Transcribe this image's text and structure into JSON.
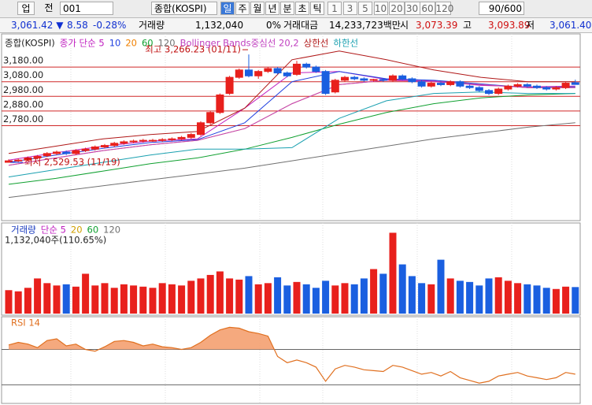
{
  "toolbar": {
    "mode": "업",
    "prefix": "전",
    "code": "001",
    "name": "종합(KOSPI)",
    "periods": [
      "일",
      "주",
      "월",
      "년",
      "분",
      "초",
      "틱"
    ],
    "intervals": [
      "1",
      "3",
      "5",
      "10",
      "20",
      "30",
      "60",
      "120"
    ],
    "count": "90/600"
  },
  "quote": [
    {
      "text": "3,061.42 ▼",
      "color": "#1030d0"
    },
    {
      "text": "8.58",
      "color": "#1030d0"
    },
    {
      "text": "-0.28%",
      "color": "#1030d0"
    },
    {
      "text": "거래량",
      "color": "#000000"
    },
    {
      "text": "1,132,040",
      "color": "#000000"
    },
    {
      "text": "0%",
      "color": "#000000"
    },
    {
      "text": "거래대금",
      "color": "#000000"
    },
    {
      "text": "14,233,723백만",
      "color": "#000000"
    },
    {
      "text": "시",
      "color": "#000000"
    },
    {
      "text": "3,073.39",
      "color": "#d01010"
    },
    {
      "text": "고",
      "color": "#000000"
    },
    {
      "text": "3,093.89",
      "color": "#d01010"
    },
    {
      "text": "저",
      "color": "#000000"
    },
    {
      "text": "3,061.40",
      "color": "#1030d0"
    }
  ],
  "chart_data": [
    {
      "type": "candlestick",
      "title": "종합(KOSPI)",
      "up_color": "#e8201c",
      "down_color": "#1a5fe0",
      "grid_color": "#d02828",
      "ylim": [
        2175,
        3385
      ],
      "yticks": [
        {
          "value": 3180,
          "label": "3,180.00"
        },
        {
          "value": 3080,
          "label": "3,080.00"
        },
        {
          "value": 2980,
          "label": "2,980.00"
        },
        {
          "value": 2880,
          "label": "2,880.00"
        },
        {
          "value": 2780,
          "label": "2,780.00"
        }
      ],
      "annotations": [
        {
          "text": "최고 3,266.23 (01/11)",
          "index": 25
        },
        {
          "text": "최저 2,529.53 (11/19)",
          "index": 0
        }
      ],
      "open": [
        2530,
        2540,
        2545,
        2560,
        2575,
        2590,
        2600,
        2590,
        2610,
        2620,
        2635,
        2645,
        2660,
        2670,
        2675,
        2680,
        2680,
        2685,
        2690,
        2700,
        2720,
        2800,
        2870,
        3000,
        3110,
        3160,
        3120,
        3150,
        3170,
        3140,
        3130,
        3200,
        3180,
        3150,
        3010,
        3090,
        3110,
        3100,
        3090,
        3095,
        3090,
        3120,
        3100,
        3080,
        3050,
        3070,
        3060,
        3080,
        3050,
        3040,
        3020,
        3000,
        3030,
        3050,
        3060,
        3050,
        3040,
        3030,
        3040,
        3073.39
      ],
      "high": [
        2550,
        2555,
        2570,
        2580,
        2600,
        2610,
        2610,
        2620,
        2630,
        2645,
        2655,
        2670,
        2680,
        2685,
        2690,
        2690,
        2695,
        2700,
        2710,
        2730,
        2810,
        2880,
        3000,
        3120,
        3170,
        3266.23,
        3160,
        3180,
        3180,
        3150,
        3222,
        3210,
        3190,
        3160,
        3100,
        3120,
        3120,
        3110,
        3100,
        3105,
        3130,
        3130,
        3110,
        3090,
        3080,
        3080,
        3090,
        3090,
        3060,
        3050,
        3030,
        3040,
        3060,
        3070,
        3070,
        3060,
        3050,
        3050,
        3080,
        3093.89
      ],
      "low": [
        2529.53,
        2530,
        2540,
        2550,
        2565,
        2580,
        2580,
        2580,
        2600,
        2610,
        2625,
        2635,
        2650,
        2660,
        2665,
        2670,
        2670,
        2675,
        2680,
        2690,
        2710,
        2790,
        2860,
        2990,
        3100,
        3110,
        3100,
        3140,
        3130,
        3110,
        3120,
        3170,
        3140,
        2990,
        3000,
        3080,
        3090,
        3080,
        3080,
        3080,
        3080,
        3090,
        3070,
        3040,
        3040,
        3050,
        3050,
        3040,
        3030,
        3010,
        2990,
        2990,
        3020,
        3040,
        3040,
        3030,
        3020,
        3020,
        3030,
        3061.4
      ],
      "close": [
        2540,
        2545,
        2560,
        2570,
        2590,
        2600,
        2590,
        2610,
        2620,
        2635,
        2645,
        2660,
        2670,
        2675,
        2680,
        2680,
        2685,
        2690,
        2700,
        2720,
        2800,
        2870,
        2990,
        3110,
        3160,
        3120,
        3150,
        3170,
        3140,
        3120,
        3200,
        3180,
        3150,
        3000,
        3090,
        3110,
        3100,
        3090,
        3095,
        3090,
        3120,
        3100,
        3080,
        3050,
        3070,
        3060,
        3080,
        3050,
        3040,
        3020,
        3000,
        3030,
        3050,
        3060,
        3050,
        3040,
        3030,
        3040,
        3070,
        3061.42
      ],
      "series": [
        {
          "name": "종가 단순 5",
          "color": "#c020c0",
          "values": [
            2545,
            2595,
            2640,
            2675,
            2690,
            2900,
            3140,
            3150,
            3095,
            3085,
            3055,
            3045,
            3050
          ]
        },
        {
          "name": "10",
          "color": "#2040e0",
          "values": [
            2530,
            2580,
            2625,
            2665,
            2685,
            2800,
            3080,
            3150,
            3100,
            3090,
            3065,
            3040,
            3045
          ]
        },
        {
          "name": "20",
          "color": "#f08000",
          "values": [
            2510,
            2560,
            2610,
            2650,
            2680,
            2760,
            2930,
            3060,
            3090,
            3080,
            3060,
            3040,
            3040
          ]
        },
        {
          "name": "60",
          "color": "#10a030",
          "values": [
            2380,
            2420,
            2470,
            2520,
            2560,
            2620,
            2700,
            2790,
            2870,
            2930,
            2970,
            2990,
            3000
          ]
        },
        {
          "name": "120",
          "color": "#707070",
          "values": [
            2290,
            2330,
            2370,
            2410,
            2450,
            2490,
            2540,
            2590,
            2640,
            2690,
            2730,
            2770,
            2800
          ]
        },
        {
          "name": "Bollinger Bands중심선 20,2",
          "color": "#c040c0",
          "values": [
            2510,
            2560,
            2610,
            2650,
            2680,
            2760,
            2930,
            3060,
            3090,
            3080,
            3060,
            3040,
            3040
          ]
        },
        {
          "name": "상한선",
          "color": "#b01818",
          "values": [
            2590,
            2640,
            2690,
            2720,
            2740,
            2900,
            3230,
            3290,
            3230,
            3160,
            3110,
            3080,
            3080
          ]
        },
        {
          "name": "하한선",
          "color": "#1aa0b0",
          "values": [
            2430,
            2480,
            2530,
            2580,
            2620,
            2620,
            2630,
            2830,
            2950,
            3000,
            3010,
            3000,
            3000
          ]
        }
      ]
    },
    {
      "type": "bar",
      "title": "1,132,040주(110.65%)",
      "ylim": [
        0,
        3800000
      ],
      "legend": [
        {
          "name": "거래량",
          "color": "#2040c0"
        },
        {
          "name": "단순 5",
          "color": "#c020c0"
        },
        {
          "name": "20",
          "color": "#d0a000"
        },
        {
          "name": "60",
          "color": "#10a030"
        },
        {
          "name": "120",
          "color": "#707070"
        }
      ],
      "values": [
        1000000,
        950000,
        1100000,
        1500000,
        1300000,
        1200000,
        1250000,
        1150000,
        1700000,
        1200000,
        1300000,
        1100000,
        1250000,
        1200000,
        1150000,
        1100000,
        1300000,
        1250000,
        1200000,
        1400000,
        1500000,
        1650000,
        1800000,
        1500000,
        1450000,
        1600000,
        1250000,
        1300000,
        1550000,
        1200000,
        1350000,
        1250000,
        1100000,
        1400000,
        1200000,
        1300000,
        1250000,
        1500000,
        1900000,
        1700000,
        3450000,
        2100000,
        1600000,
        1300000,
        1250000,
        2300000,
        1500000,
        1400000,
        1350000,
        1200000,
        1500000,
        1550000,
        1400000,
        1300000,
        1250000,
        1200000,
        1100000,
        1050000,
        1150000,
        1132040
      ]
    },
    {
      "type": "line",
      "title": "RSI 14",
      "color": "#e07020",
      "ylim": [
        9,
        106
      ],
      "reference_lines": [
        30,
        70
      ],
      "values": [
        75,
        78,
        76,
        72,
        80,
        82,
        74,
        76,
        70,
        68,
        73,
        79,
        80,
        78,
        74,
        76,
        73,
        72,
        70,
        72,
        78,
        86,
        92,
        95,
        94,
        90,
        88,
        85,
        62,
        55,
        58,
        55,
        50,
        34,
        48,
        52,
        50,
        47,
        46,
        45,
        52,
        50,
        46,
        42,
        44,
        40,
        45,
        38,
        35,
        32,
        34,
        40,
        42,
        44,
        40,
        38,
        36,
        38,
        44,
        42
      ]
    }
  ]
}
